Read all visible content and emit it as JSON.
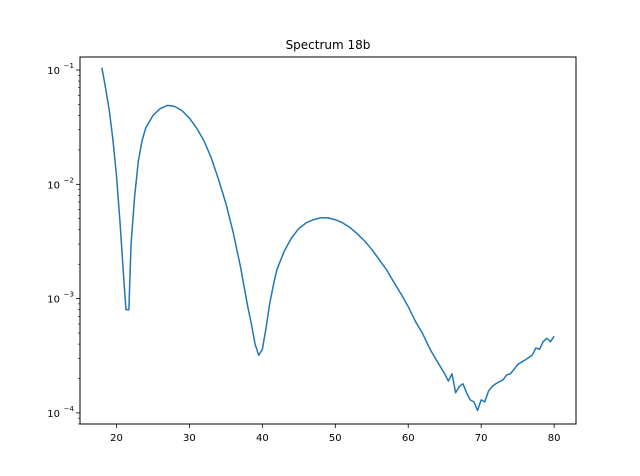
{
  "chart_data": {
    "type": "line",
    "title": "Spectrum 18b",
    "xlabel": "",
    "ylabel": "",
    "xlim": [
      15,
      83
    ],
    "ylim": [
      8e-05,
      0.13
    ],
    "yscale": "log",
    "grid": false,
    "xticks": [
      20,
      30,
      40,
      50,
      60,
      70,
      80
    ],
    "xtick_labels": [
      "20",
      "30",
      "40",
      "50",
      "60",
      "70",
      "80"
    ],
    "yticks": [
      0.0001,
      0.001,
      0.01,
      0.1
    ],
    "ytick_labels": [
      {
        "base": "10",
        "exp": "−4"
      },
      {
        "base": "10",
        "exp": "−3"
      },
      {
        "base": "10",
        "exp": "−2"
      },
      {
        "base": "10",
        "exp": "−1"
      }
    ],
    "series": [
      {
        "name": "",
        "color": "#1f77b4",
        "x": [
          18.0,
          18.5,
          19.0,
          19.5,
          20.0,
          20.5,
          21.0,
          21.3,
          21.7,
          22.0,
          22.5,
          23.0,
          23.5,
          24.0,
          25.0,
          26.0,
          27.0,
          28.0,
          29.0,
          30.0,
          31.0,
          32.0,
          33.0,
          34.0,
          35.0,
          36.0,
          37.0,
          38.0,
          38.5,
          39.0,
          39.5,
          40.0,
          40.5,
          41.0,
          41.5,
          42.0,
          43.0,
          44.0,
          45.0,
          46.0,
          47.0,
          48.0,
          49.0,
          50.0,
          51.0,
          52.0,
          53.0,
          54.0,
          55.0,
          56.0,
          57.0,
          58.0,
          59.0,
          60.0,
          61.0,
          62.0,
          63.0,
          64.0,
          65.0,
          65.5,
          66.0,
          66.5,
          67.0,
          67.5,
          68.0,
          68.5,
          69.0,
          69.5,
          70.0,
          70.5,
          71.0,
          71.5,
          72.0,
          73.0,
          73.5,
          74.0,
          74.5,
          75.0,
          76.0,
          77.0,
          77.5,
          78.0,
          78.5,
          79.0,
          79.5,
          80.0
        ],
        "y": [
          0.105,
          0.07,
          0.045,
          0.025,
          0.012,
          0.0045,
          0.0015,
          0.0008,
          0.0008,
          0.003,
          0.008,
          0.016,
          0.024,
          0.031,
          0.04,
          0.046,
          0.049,
          0.048,
          0.044,
          0.038,
          0.031,
          0.024,
          0.017,
          0.011,
          0.0068,
          0.0038,
          0.0019,
          0.00085,
          0.0006,
          0.0004,
          0.00032,
          0.00036,
          0.00055,
          0.0009,
          0.0013,
          0.0018,
          0.0026,
          0.0034,
          0.0041,
          0.0046,
          0.0049,
          0.0051,
          0.0051,
          0.0049,
          0.0046,
          0.0042,
          0.0037,
          0.0032,
          0.0027,
          0.0022,
          0.0018,
          0.0014,
          0.0011,
          0.00085,
          0.00063,
          0.00049,
          0.00036,
          0.00028,
          0.00022,
          0.00019,
          0.00022,
          0.00015,
          0.00017,
          0.00018,
          0.00015,
          0.00013,
          0.000125,
          0.000105,
          0.00013,
          0.000125,
          0.000155,
          0.00017,
          0.00018,
          0.000195,
          0.000215,
          0.00022,
          0.00024,
          0.000265,
          0.00029,
          0.00032,
          0.00037,
          0.00036,
          0.00042,
          0.00045,
          0.00042,
          0.00047
        ]
      }
    ]
  }
}
